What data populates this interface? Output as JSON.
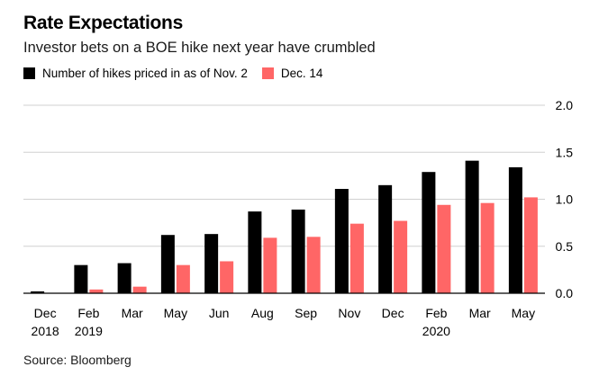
{
  "header": {
    "title": "Rate Expectations",
    "subtitle": "Investor bets on a BOE hike next year have crumbled"
  },
  "source": "Source: Bloomberg",
  "colors": {
    "series1": "#000000",
    "series2": "#ff6666",
    "grid": "#d0d0d0",
    "axis": "#000000"
  },
  "chart_data": {
    "type": "bar",
    "title": "Rate Expectations",
    "subtitle": "Investor bets on a BOE hike next year have crumbled",
    "categories": [
      "Dec",
      "Feb",
      "Mar",
      "May",
      "Jun",
      "Aug",
      "Sep",
      "Nov",
      "Dec",
      "Feb",
      "Mar",
      "May"
    ],
    "category_sublabels": [
      "2018",
      "2019",
      "",
      "",
      "",
      "",
      "",
      "",
      "",
      "2020",
      "",
      ""
    ],
    "series": [
      {
        "name": "Number of hikes priced in as of Nov. 2",
        "values": [
          0.02,
          0.3,
          0.32,
          0.62,
          0.63,
          0.87,
          0.89,
          1.11,
          1.15,
          1.29,
          1.41,
          1.34
        ]
      },
      {
        "name": "Dec. 14",
        "values": [
          0.0,
          0.04,
          0.07,
          0.3,
          0.34,
          0.59,
          0.6,
          0.74,
          0.77,
          0.94,
          0.96,
          1.02
        ]
      }
    ],
    "yticks": [
      "0.0",
      "0.5",
      "1.0",
      "1.5",
      "2.0"
    ],
    "ylim": [
      0,
      2.0
    ],
    "xlabel": "",
    "ylabel": "",
    "y_axis_side": "right",
    "grid": true,
    "legend_position": "top-left"
  }
}
